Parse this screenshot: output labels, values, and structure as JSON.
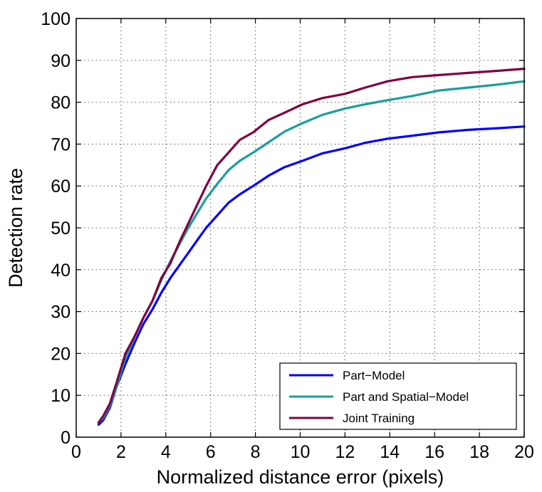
{
  "chart_data": {
    "type": "line",
    "title": "",
    "xlabel": "Normalized distance error (pixels)",
    "ylabel": "Detection rate",
    "xlim": [
      0,
      20
    ],
    "ylim": [
      0,
      100
    ],
    "xticks": [
      0,
      2,
      4,
      6,
      8,
      10,
      12,
      14,
      16,
      18,
      20
    ],
    "yticks": [
      0,
      10,
      20,
      30,
      40,
      50,
      60,
      70,
      80,
      90,
      100
    ],
    "grid": true,
    "legend_position": "bottom-right",
    "series": [
      {
        "name": "Part−Model",
        "color": "#0000ff",
        "x": [
          1.0,
          1.2,
          1.5,
          1.8,
          2.2,
          2.6,
          3.0,
          3.4,
          3.8,
          4.2,
          4.6,
          5.0,
          5.4,
          5.8,
          6.3,
          6.8,
          7.3,
          7.9,
          8.6,
          9.3,
          10.1,
          11.0,
          12.0,
          12.9,
          13.9,
          15.0,
          16.2,
          17.5,
          18.8,
          20.0
        ],
        "y": [
          3.0,
          4.0,
          7.0,
          12.0,
          17.5,
          22.5,
          27.0,
          30.5,
          34.5,
          38.0,
          41.0,
          44.0,
          47.0,
          50.0,
          53.0,
          56.0,
          58.0,
          60.0,
          62.5,
          64.5,
          66.0,
          67.8,
          69.0,
          70.3,
          71.3,
          72.0,
          72.8,
          73.4,
          73.8,
          74.2
        ]
      },
      {
        "name": "Part and Spatial−Model",
        "color": "#1a9e9e",
        "x": [
          1.0,
          1.2,
          1.5,
          1.8,
          2.2,
          2.6,
          3.0,
          3.4,
          3.8,
          4.2,
          4.6,
          5.0,
          5.4,
          5.8,
          6.3,
          6.8,
          7.3,
          7.9,
          8.6,
          9.3,
          10.1,
          11.0,
          12.0,
          12.9,
          13.9,
          15.0,
          16.2,
          17.5,
          18.8,
          20.0
        ],
        "y": [
          3.5,
          4.5,
          7.5,
          12.0,
          19.0,
          24.0,
          28.5,
          32.5,
          37.5,
          42.0,
          46.0,
          50.0,
          53.5,
          57.0,
          60.5,
          63.8,
          66.0,
          68.0,
          70.5,
          73.0,
          75.0,
          77.0,
          78.5,
          79.5,
          80.5,
          81.5,
          82.8,
          83.5,
          84.2,
          85.0
        ]
      },
      {
        "name": "Joint Training",
        "color": "#7f0040",
        "x": [
          1.0,
          1.2,
          1.5,
          1.8,
          2.2,
          2.6,
          3.0,
          3.4,
          3.8,
          4.2,
          4.6,
          5.0,
          5.4,
          5.8,
          6.3,
          6.8,
          7.3,
          7.9,
          8.6,
          9.3,
          10.1,
          11.0,
          12.0,
          12.9,
          13.9,
          15.0,
          16.2,
          17.5,
          18.8,
          20.0
        ],
        "y": [
          3.5,
          5.0,
          8.0,
          13.0,
          20.0,
          24.0,
          28.5,
          32.5,
          38.0,
          41.5,
          46.5,
          51.0,
          55.5,
          60.0,
          65.0,
          68.0,
          71.0,
          72.8,
          75.8,
          77.5,
          79.5,
          81.0,
          82.0,
          83.5,
          85.0,
          86.0,
          86.5,
          87.0,
          87.5,
          88.0
        ]
      }
    ]
  }
}
